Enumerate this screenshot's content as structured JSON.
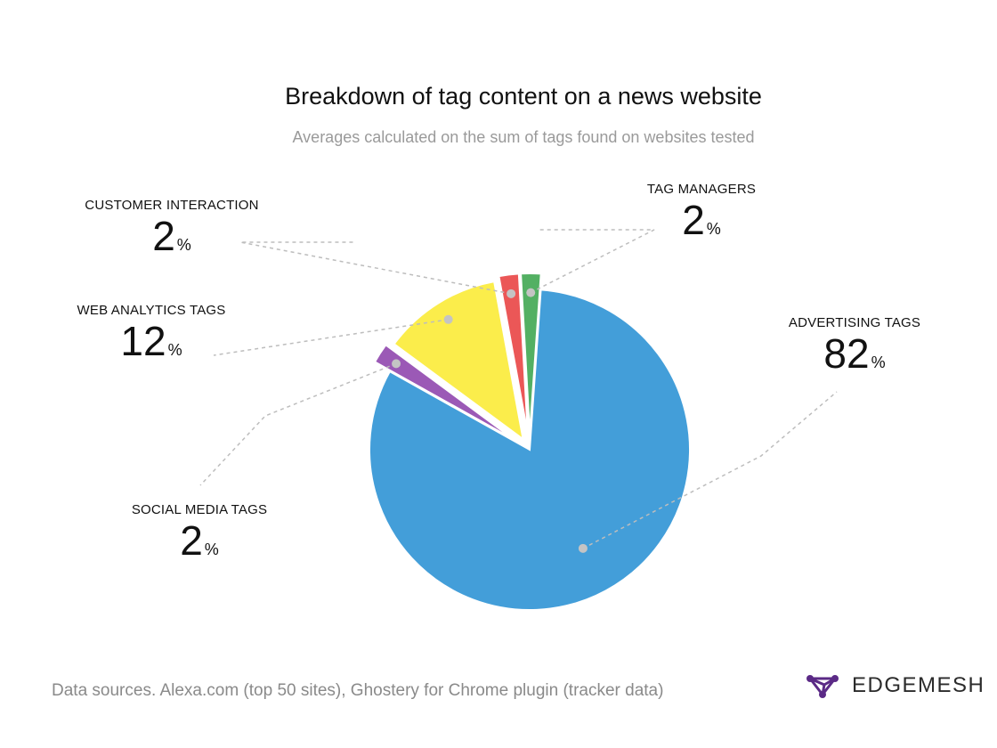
{
  "chart_data": {
    "type": "pie",
    "title": "Breakdown of tag content on a news website",
    "subtitle": "Averages calculated on the sum of tags found on websites tested",
    "categories": [
      "ADVERTISING TAGS",
      "SOCIAL MEDIA TAGS",
      "WEB ANALYTICS TAGS",
      "CUSTOMER INTERACTION",
      "TAG MANAGERS"
    ],
    "values": [
      82,
      2,
      12,
      2,
      2
    ],
    "colors": [
      "#439ED9",
      "#9B59B6",
      "#FBED4B",
      "#EB5757",
      "#53B063"
    ],
    "unit": "%",
    "legend": "callout labels"
  },
  "footer": {
    "sources": "Data sources. Alexa.com (top 50 sites), Ghostery for Chrome plugin (tracker data)"
  },
  "brand": {
    "name": "EDGEMESH",
    "logo_icon": "edgemesh-logo-icon",
    "color": "#5B2A86"
  }
}
